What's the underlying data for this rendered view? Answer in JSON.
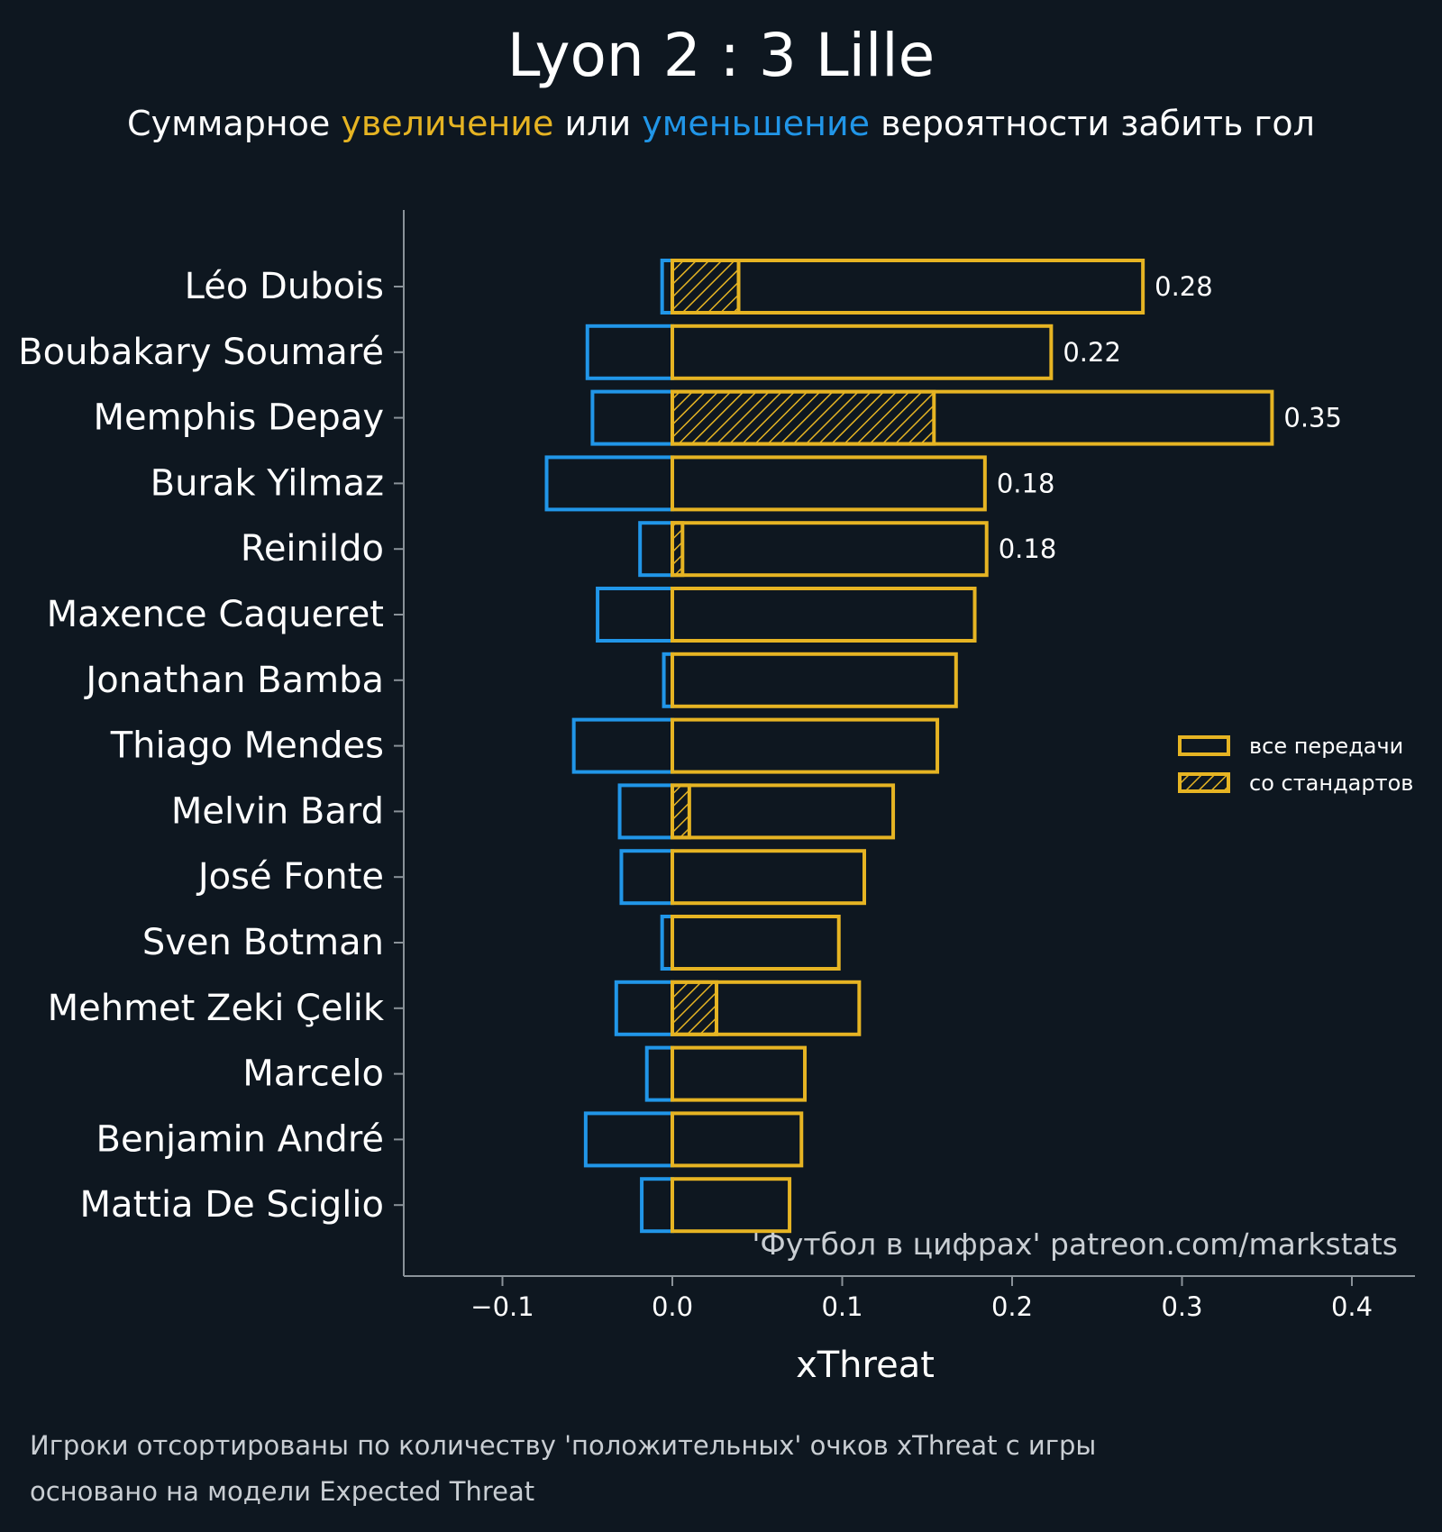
{
  "title": "Lyon 2 : 3 Lille",
  "subtitle": {
    "parts": [
      {
        "text": "Суммарное ",
        "color": "#ffffff"
      },
      {
        "text": "увеличение",
        "color": "#e6b423"
      },
      {
        "text": " или ",
        "color": "#ffffff"
      },
      {
        "text": "уменьшение",
        "color": "#2196e8"
      },
      {
        "text": " вероятности забить гол",
        "color": "#ffffff"
      }
    ]
  },
  "watermark": "'Футбол в цифрах' patreon.com/markstats",
  "footnote": {
    "line1": "Игроки отсортированы по количеству 'положительных' очков xThreat с игры",
    "line2": "основано на модели Expected Threat"
  },
  "colors": {
    "background": "#0e1720",
    "positive": "#e6b423",
    "negative": "#2196e8",
    "axis": "#8a9299",
    "text": "#ffffff"
  },
  "chart_data": {
    "type": "bar",
    "orientation": "horizontal",
    "xlabel": "xThreat",
    "ylabel": "",
    "xlim": [
      -0.16,
      0.4375
    ],
    "xticks": [
      -0.1,
      0.0,
      0.1,
      0.2,
      0.3,
      0.4
    ],
    "xtick_labels": [
      "−0.1",
      "0.0",
      "0.1",
      "0.2",
      "0.3",
      "0.4"
    ],
    "grid": false,
    "legend_position": "right",
    "legend": [
      {
        "label": "все передачи",
        "style": "outline"
      },
      {
        "label": "со стандартов",
        "style": "hatched"
      }
    ],
    "categories": [
      "Léo Dubois",
      "Boubakary Soumaré",
      "Memphis Depay",
      "Burak Yilmaz",
      "Reinildo",
      "Maxence Caqueret",
      "Jonathan Bamba",
      "Thiago Mendes",
      "Melvin Bard",
      "José Fonte",
      "Sven Botman",
      "Mehmet Zeki Çelik",
      "Marcelo",
      "Benjamin André",
      "Mattia De Sciglio"
    ],
    "series": [
      {
        "name": "все передачи",
        "values": [
          0.277,
          0.223,
          0.353,
          0.184,
          0.185,
          0.178,
          0.167,
          0.156,
          0.13,
          0.113,
          0.098,
          0.11,
          0.078,
          0.076,
          0.069
        ]
      },
      {
        "name": "со стандартов",
        "values": [
          0.039,
          0,
          0.154,
          0,
          0.006,
          0,
          0,
          0,
          0.01,
          0,
          0,
          0.026,
          0,
          0,
          0
        ]
      },
      {
        "values": [
          -0.006,
          -0.05,
          -0.047,
          -0.074,
          -0.019,
          -0.044,
          -0.005,
          -0.058,
          -0.031,
          -0.03,
          -0.006,
          -0.033,
          -0.015,
          -0.051,
          -0.018
        ]
      }
    ],
    "data_labels": [
      "0.28",
      "0.22",
      "0.35",
      "0.18",
      "0.18",
      "",
      "",
      "",
      "",
      "",
      "",
      "",
      "",
      "",
      ""
    ]
  }
}
